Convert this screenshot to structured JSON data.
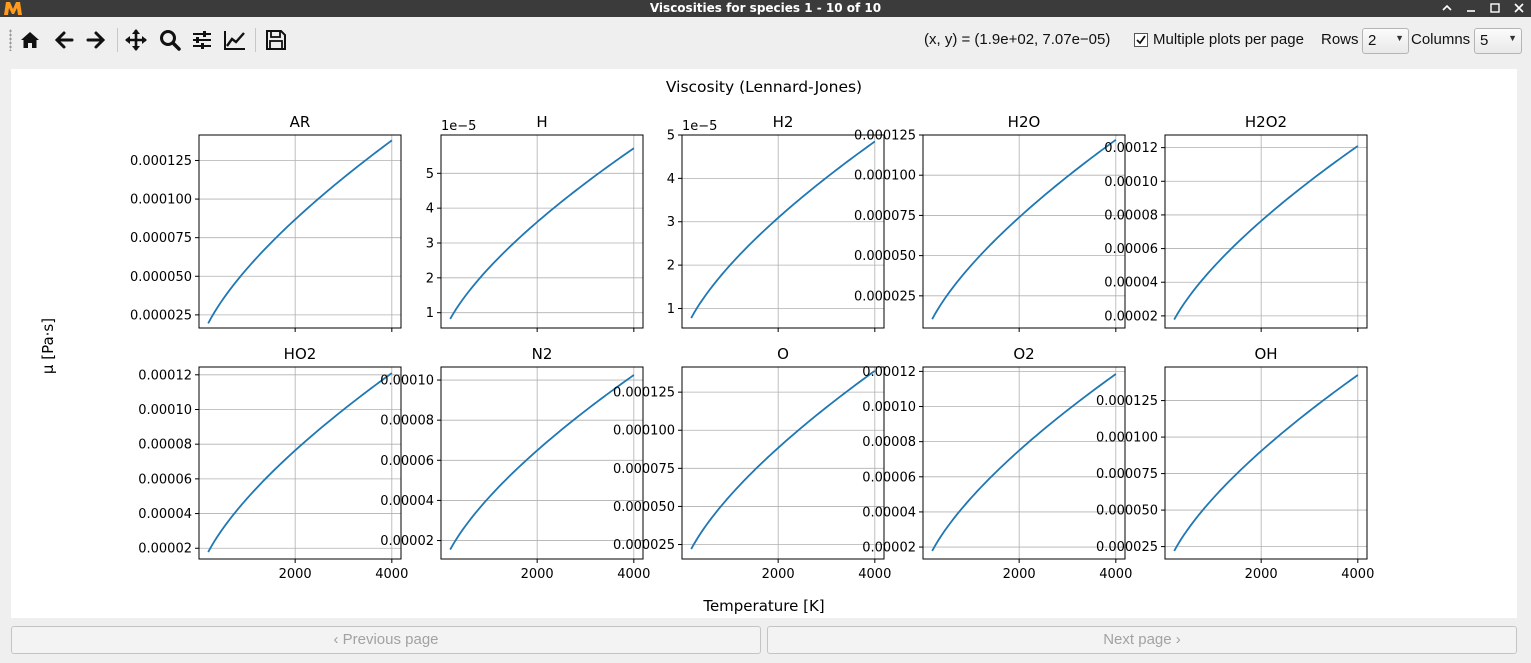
{
  "window": {
    "title": "Viscosities for species 1 - 10 of 10",
    "logo_text": "M"
  },
  "toolbar": {
    "coord_readout": "(x, y) = (1.9e+02, 7.07e−05)",
    "multiple_plots_label": "Multiple plots per page",
    "multiple_plots_checked": true,
    "rows_label": "Rows",
    "rows_value": "2",
    "columns_label": "Columns",
    "columns_value": "5",
    "icons": [
      "home-icon",
      "back-arrow-icon",
      "forward-arrow-icon",
      "pan-icon",
      "zoom-icon",
      "configure-subplots-icon",
      "edit-axes-icon",
      "save-icon"
    ]
  },
  "figure": {
    "suptitle": "Viscosity (Lennard-Jones)",
    "ylabel": "μ [Pa·s]",
    "xlabel": "Temperature [K]"
  },
  "chart_data": [
    {
      "type": "line",
      "title": "AR",
      "x": [
        200,
        4000
      ],
      "ylim": [
        1.65e-05,
        0.0001415
      ],
      "yticks": [
        "0.000025",
        "0.000050",
        "0.000075",
        "0.000100",
        "0.000125"
      ],
      "ytick_values": [
        2.5e-05,
        5e-05,
        7.5e-05,
        0.0001,
        0.000125
      ],
      "offset": "",
      "x_start": 200,
      "x_end": 4000,
      "y_start": 1.95e-05,
      "y_end": 0.000138,
      "xticks": []
    },
    {
      "type": "line",
      "title": "H",
      "x": [
        200,
        4000
      ],
      "ylim": [
        5.6e-06,
        6.1e-05
      ],
      "yticks": [
        "1",
        "2",
        "3",
        "4",
        "5"
      ],
      "ytick_values": [
        1e-05,
        2e-05,
        3e-05,
        4e-05,
        5e-05
      ],
      "offset": "1e−5",
      "x_start": 200,
      "x_end": 4000,
      "y_start": 8.2e-06,
      "y_end": 5.72e-05,
      "xticks": []
    },
    {
      "type": "line",
      "title": "H2",
      "x": [
        200,
        4000
      ],
      "ylim": [
        5.5e-06,
        5e-05
      ],
      "yticks": [
        "1",
        "2",
        "3",
        "4",
        "5"
      ],
      "ytick_values": [
        1e-05,
        2e-05,
        3e-05,
        4e-05,
        5e-05
      ],
      "offset": "1e−5",
      "x_start": 200,
      "x_end": 4000,
      "y_start": 7.8e-06,
      "y_end": 4.85e-05,
      "xticks": []
    },
    {
      "type": "line",
      "title": "H2O",
      "x": [
        200,
        4000
      ],
      "ylim": [
        5e-06,
        0.000125
      ],
      "yticks": [
        "0.000025",
        "0.000050",
        "0.000075",
        "0.000100",
        "0.000125"
      ],
      "ytick_values": [
        2.5e-05,
        5e-05,
        7.5e-05,
        0.0001,
        0.000125
      ],
      "offset": "",
      "x_start": 200,
      "x_end": 4000,
      "y_start": 1.05e-05,
      "y_end": 0.000122,
      "xticks": []
    },
    {
      "type": "line",
      "title": "H2O2",
      "x": [
        200,
        4000
      ],
      "ylim": [
        1.28e-05,
        0.0001275
      ],
      "yticks": [
        "0.00002",
        "0.00004",
        "0.00006",
        "0.00008",
        "0.00010",
        "0.00012"
      ],
      "ytick_values": [
        2e-05,
        4e-05,
        6e-05,
        8e-05,
        0.0001,
        0.00012
      ],
      "offset": "",
      "x_start": 200,
      "x_end": 4000,
      "y_start": 1.78e-05,
      "y_end": 0.000121,
      "xticks": []
    },
    {
      "type": "line",
      "title": "HO2",
      "x": [
        200,
        4000
      ],
      "ylim": [
        1.38e-05,
        0.0001245
      ],
      "yticks": [
        "0.00002",
        "0.00004",
        "0.00006",
        "0.00008",
        "0.00010",
        "0.00012"
      ],
      "ytick_values": [
        2e-05,
        4e-05,
        6e-05,
        8e-05,
        0.0001,
        0.00012
      ],
      "offset": "",
      "x_start": 200,
      "x_end": 4000,
      "y_start": 1.78e-05,
      "y_end": 0.000121,
      "xticks": [
        "2000",
        "4000"
      ]
    },
    {
      "type": "line",
      "title": "N2",
      "x": [
        200,
        4000
      ],
      "ylim": [
        1.08e-05,
        0.0001065
      ],
      "yticks": [
        "0.00002",
        "0.00004",
        "0.00006",
        "0.00008",
        "0.00010"
      ],
      "ytick_values": [
        2e-05,
        4e-05,
        6e-05,
        8e-05,
        0.0001
      ],
      "offset": "",
      "x_start": 200,
      "x_end": 4000,
      "y_start": 1.55e-05,
      "y_end": 0.0001025,
      "xticks": [
        "2000",
        "4000"
      ]
    },
    {
      "type": "line",
      "title": "O",
      "x": [
        200,
        4000
      ],
      "ylim": [
        1.55e-05,
        0.0001415
      ],
      "yticks": [
        "0.000025",
        "0.000050",
        "0.000075",
        "0.000100",
        "0.000125"
      ],
      "ytick_values": [
        2.5e-05,
        5e-05,
        7.5e-05,
        0.0001,
        0.000125
      ],
      "offset": "",
      "x_start": 200,
      "x_end": 4000,
      "y_start": 2.2e-05,
      "y_end": 0.000139,
      "xticks": [
        "2000",
        "4000"
      ]
    },
    {
      "type": "line",
      "title": "O2",
      "x": [
        200,
        4000
      ],
      "ylim": [
        1.32e-05,
        0.0001225
      ],
      "yticks": [
        "0.00002",
        "0.00004",
        "0.00006",
        "0.00008",
        "0.00010",
        "0.00012"
      ],
      "ytick_values": [
        2e-05,
        4e-05,
        6e-05,
        8e-05,
        0.0001,
        0.00012
      ],
      "offset": "",
      "x_start": 200,
      "x_end": 4000,
      "y_start": 1.78e-05,
      "y_end": 0.0001185,
      "xticks": [
        "2000",
        "4000"
      ]
    },
    {
      "type": "line",
      "title": "OH",
      "x": [
        200,
        4000
      ],
      "ylim": [
        1.65e-05,
        0.000148
      ],
      "yticks": [
        "0.000025",
        "0.000050",
        "0.000075",
        "0.000100",
        "0.000125"
      ],
      "ytick_values": [
        2.5e-05,
        5e-05,
        7.5e-05,
        0.0001,
        0.000125
      ],
      "offset": "",
      "x_start": 200,
      "x_end": 4000,
      "y_start": 2.2e-05,
      "y_end": 0.0001425,
      "xticks": [
        "2000",
        "4000"
      ]
    }
  ],
  "axes_common": {
    "xlim": [
      10,
      4190
    ],
    "xgrid": [
      2000,
      4000
    ],
    "grid": true,
    "line_color": "#1f77b4"
  },
  "pager": {
    "prev_label": "‹ Previous page",
    "next_label": "Next page ›"
  }
}
